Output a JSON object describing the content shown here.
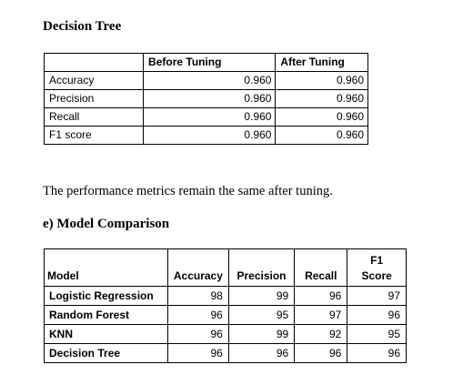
{
  "section1": {
    "heading": "Decision Tree",
    "columns": [
      "",
      "Before Tuning",
      "After Tuning"
    ],
    "rows": [
      {
        "metric": "Accuracy",
        "before": "0.960",
        "after": "0.960"
      },
      {
        "metric": "Precision",
        "before": "0.960",
        "after": "0.960"
      },
      {
        "metric": "Recall",
        "before": "0.960",
        "after": "0.960"
      },
      {
        "metric": "F1 score",
        "before": "0.960",
        "after": "0.960"
      }
    ]
  },
  "note": "The performance metrics remain the same after tuning.",
  "section2": {
    "heading": "e) Model Comparison",
    "columns": [
      "Model",
      "Accuracy",
      "Precision",
      "Recall",
      "F1 Score"
    ],
    "rows": [
      {
        "model": "Logistic Regression",
        "accuracy": "98",
        "precision": "99",
        "recall": "96",
        "f1": "97"
      },
      {
        "model": "Random Forest",
        "accuracy": "96",
        "precision": "95",
        "recall": "97",
        "f1": "96"
      },
      {
        "model": "KNN",
        "accuracy": "96",
        "precision": "99",
        "recall": "92",
        "f1": "95"
      },
      {
        "model": "Decision Tree",
        "accuracy": "96",
        "precision": "96",
        "recall": "96",
        "f1": "96"
      }
    ]
  }
}
